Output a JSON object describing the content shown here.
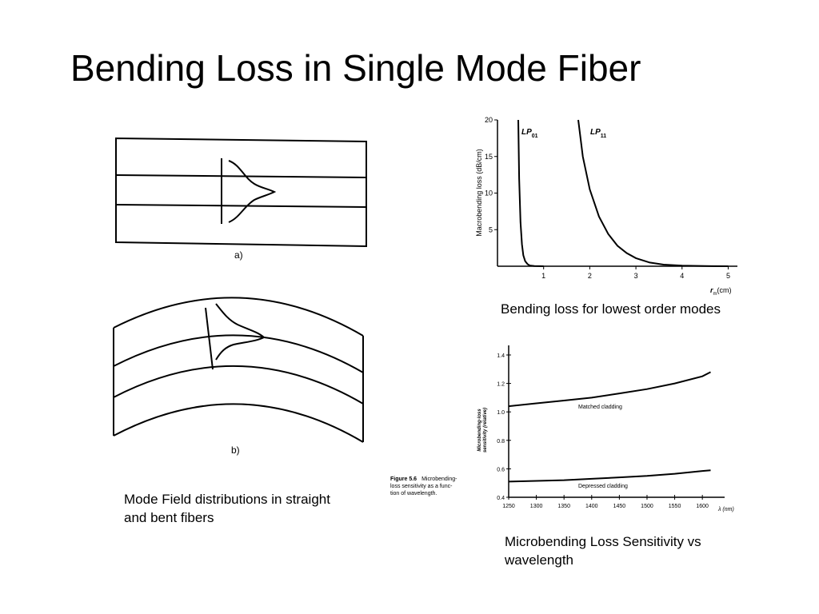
{
  "slide": {
    "title": "Bending Loss in Single Mode Fiber"
  },
  "figure_a": {
    "label": "a)"
  },
  "figure_b": {
    "label": "b)"
  },
  "captions": {
    "mode_field_line1": "Mode Field distributions in straight",
    "mode_field_line2": "and bent fibers",
    "bending_loss": "Bending loss for lowest order modes",
    "microbending_line1": "Microbending Loss Sensitivity vs",
    "microbending_line2": "wavelength"
  },
  "chart_data": [
    {
      "type": "line",
      "ylabel": "Macrobending loss (dB/cm)",
      "xlabel": "r_m(cm)",
      "xlabel_main": "r",
      "xlabel_sub": "m",
      "xlabel_unit": "(cm)",
      "xlim": [
        0,
        5.2
      ],
      "ylim": [
        0,
        20
      ],
      "xticks": [
        1,
        2,
        3,
        4,
        5
      ],
      "yticks": [
        5,
        10,
        15,
        20
      ],
      "series": [
        {
          "name": "LP01",
          "name_main": "LP",
          "name_sub": "01",
          "x": [
            0.45,
            0.47,
            0.5,
            0.53,
            0.56,
            0.6,
            0.65,
            0.7,
            0.8,
            1.0
          ],
          "y": [
            20,
            12,
            6,
            3,
            1.5,
            0.7,
            0.3,
            0.1,
            0.03,
            0
          ]
        },
        {
          "name": "LP11",
          "name_main": "LP",
          "name_sub": "11",
          "x": [
            1.75,
            1.85,
            2.0,
            2.2,
            2.4,
            2.6,
            2.8,
            3.0,
            3.3,
            3.6,
            4.0,
            4.5,
            5.0
          ],
          "y": [
            20,
            15,
            10.5,
            6.8,
            4.4,
            2.8,
            1.8,
            1.1,
            0.5,
            0.22,
            0.08,
            0.02,
            0
          ]
        }
      ]
    },
    {
      "type": "line",
      "figure_label": "Figure 5.6",
      "figure_caption_lines": [
        "Microbending-",
        "loss sensitivity as a func-",
        "tion of wavelength."
      ],
      "ylabel_lines": [
        "Microbending-loss",
        "sensitivity (relative)"
      ],
      "xlabel": "λ (nm)",
      "xlim": [
        1250,
        1620
      ],
      "ylim": [
        0.4,
        1.4
      ],
      "xticks": [
        1250,
        1300,
        1350,
        1400,
        1450,
        1500,
        1550,
        1600
      ],
      "yticks": [
        0.4,
        0.6,
        0.8,
        1.0,
        1.2,
        1.4
      ],
      "ytick_labels": [
        "0.4",
        "0.6",
        "0.8",
        "1.0",
        "1.2",
        "1.4"
      ],
      "series": [
        {
          "name": "Matched cladding",
          "x": [
            1250,
            1300,
            1350,
            1400,
            1450,
            1500,
            1550,
            1600,
            1615
          ],
          "y": [
            1.04,
            1.06,
            1.08,
            1.1,
            1.13,
            1.16,
            1.2,
            1.25,
            1.28
          ]
        },
        {
          "name": "Depressed cladding",
          "x": [
            1250,
            1300,
            1350,
            1400,
            1450,
            1500,
            1550,
            1600,
            1615
          ],
          "y": [
            0.51,
            0.515,
            0.52,
            0.53,
            0.54,
            0.55,
            0.565,
            0.585,
            0.59
          ]
        }
      ]
    }
  ]
}
